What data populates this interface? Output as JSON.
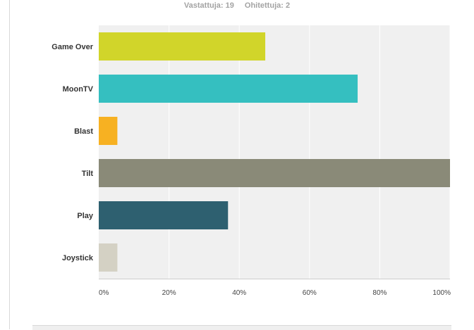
{
  "header": {
    "answered_label": "Vastattuja: 19",
    "skipped_label": "Ohitettuja: 2"
  },
  "chart_data": {
    "type": "bar",
    "orientation": "horizontal",
    "categories": [
      "Game Over",
      "MoonTV",
      "Blast",
      "Tilt",
      "Play",
      "Joystick"
    ],
    "values": [
      47.4,
      73.7,
      5.3,
      100,
      36.8,
      5.3
    ],
    "colors": [
      "#d1d52a",
      "#35bfc0",
      "#f7b122",
      "#8a8a78",
      "#2e6070",
      "#d4d1c4"
    ],
    "xlim": [
      0,
      100
    ],
    "ticks": [
      0,
      20,
      40,
      60,
      80,
      100
    ],
    "tick_labels": [
      "0%",
      "20%",
      "40%",
      "60%",
      "80%",
      "100%"
    ],
    "grid": true,
    "plot_background": "#f0f0f0"
  }
}
